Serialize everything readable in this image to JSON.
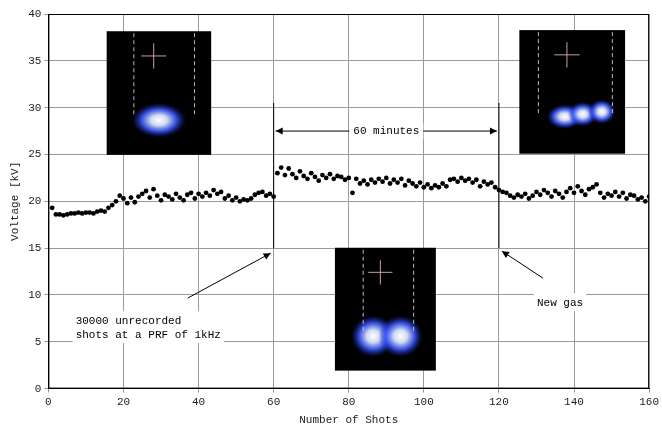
{
  "chart_data": {
    "type": "scatter",
    "x_label": "Number of Shots",
    "y_label": "Voltage [kV]",
    "xlim": [
      0,
      160
    ],
    "xticks": [
      0,
      20,
      40,
      60,
      80,
      100,
      120,
      140,
      160
    ],
    "ylim": [
      0,
      40
    ],
    "yticks": [
      0,
      5,
      10,
      15,
      20,
      25,
      30,
      35,
      40
    ],
    "grid": true,
    "color": "#000000",
    "marker": "circle",
    "x": [
      1,
      2,
      3,
      4,
      5,
      6,
      7,
      8,
      9,
      10,
      11,
      12,
      13,
      14,
      15,
      16,
      17,
      18,
      19,
      20,
      21,
      22,
      23,
      24,
      25,
      26,
      27,
      28,
      29,
      30,
      31,
      32,
      33,
      34,
      35,
      36,
      37,
      38,
      39,
      40,
      41,
      42,
      43,
      44,
      45,
      46,
      47,
      48,
      49,
      50,
      51,
      52,
      53,
      54,
      55,
      56,
      57,
      58,
      59,
      60,
      61,
      62,
      63,
      64,
      65,
      66,
      67,
      68,
      69,
      70,
      71,
      72,
      73,
      74,
      75,
      76,
      77,
      78,
      79,
      80,
      81,
      82,
      83,
      84,
      85,
      86,
      87,
      88,
      89,
      90,
      91,
      92,
      93,
      94,
      95,
      96,
      97,
      98,
      99,
      100,
      101,
      102,
      103,
      104,
      105,
      106,
      107,
      108,
      109,
      110,
      111,
      112,
      113,
      114,
      115,
      116,
      117,
      118,
      119,
      120,
      121,
      122,
      123,
      124,
      125,
      126,
      127,
      128,
      129,
      130,
      131,
      132,
      133,
      134,
      135,
      136,
      137,
      138,
      139,
      140,
      141,
      142,
      143,
      144,
      145,
      146,
      147,
      148,
      149,
      150,
      151,
      152,
      153,
      154,
      155,
      156,
      157,
      158,
      159,
      160
    ],
    "values": [
      19.3,
      18.6,
      18.6,
      18.5,
      18.6,
      18.7,
      18.7,
      18.8,
      18.7,
      18.8,
      18.8,
      18.7,
      18.9,
      19.0,
      18.9,
      19.3,
      19.6,
      20.0,
      20.6,
      20.3,
      19.8,
      20.4,
      19.9,
      20.5,
      20.8,
      21.1,
      20.4,
      21.3,
      20.6,
      20.1,
      20.7,
      20.5,
      20.2,
      20.8,
      20.4,
      20.1,
      20.7,
      20.9,
      20.3,
      20.8,
      20.5,
      20.9,
      20.6,
      21.2,
      20.8,
      21.0,
      20.3,
      20.6,
      20.1,
      20.4,
      20.0,
      20.2,
      20.1,
      20.3,
      20.7,
      20.9,
      21.0,
      20.6,
      20.8,
      20.5,
      23.0,
      23.6,
      22.8,
      23.5,
      22.9,
      22.5,
      23.2,
      22.7,
      22.4,
      23.0,
      22.6,
      22.2,
      22.8,
      22.5,
      22.9,
      22.4,
      22.7,
      22.6,
      22.3,
      22.5,
      20.9,
      22.4,
      21.9,
      22.2,
      21.8,
      22.3,
      22.0,
      22.4,
      22.1,
      22.5,
      21.9,
      22.3,
      22.0,
      22.4,
      21.7,
      22.2,
      21.9,
      21.6,
      22.0,
      21.5,
      21.8,
      21.4,
      21.7,
      21.5,
      21.9,
      21.6,
      22.3,
      22.4,
      22.1,
      22.5,
      22.2,
      22.4,
      22.0,
      22.3,
      21.6,
      22.1,
      21.8,
      22.0,
      21.5,
      21.2,
      21.0,
      20.9,
      20.6,
      20.4,
      20.7,
      20.5,
      20.8,
      20.3,
      20.6,
      21.0,
      20.7,
      21.2,
      20.9,
      20.5,
      21.1,
      20.8,
      20.4,
      21.0,
      21.4,
      20.9,
      21.6,
      21.1,
      20.7,
      21.3,
      21.5,
      21.8,
      20.9,
      20.4,
      20.8,
      20.6,
      21.0,
      20.5,
      20.9,
      20.3,
      20.7,
      20.6,
      20.2,
      20.4,
      20.0,
      20.5
    ],
    "vlines": [
      {
        "x": 60,
        "y": [
          15,
          30.5
        ]
      },
      {
        "x": 120,
        "y": [
          15,
          30.5
        ]
      }
    ],
    "annotations": [
      {
        "text": "60 minutes",
        "x": [
          60,
          120
        ],
        "y": 27.5
      },
      {
        "text": "30000 unrecorded\nshots at a PRF of 1kHz",
        "x": 60,
        "y": 15
      },
      {
        "text": "New gas",
        "x": 120,
        "y": 15
      }
    ]
  }
}
